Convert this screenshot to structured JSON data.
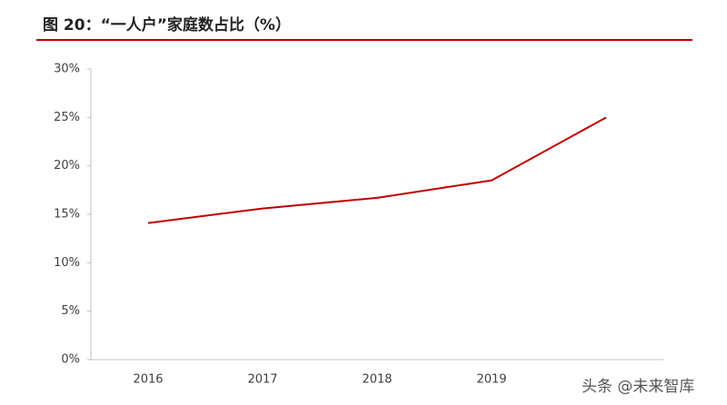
{
  "chart_data": {
    "type": "line",
    "title": "图 20：“一人户”家庭数占比（%）",
    "categories": [
      "2016",
      "2017",
      "2018",
      "2019",
      null
    ],
    "series": [
      {
        "name": "“一人户”家庭数占比",
        "color": "#c00000",
        "values": [
          14.1,
          15.6,
          16.7,
          18.5,
          25
        ]
      }
    ],
    "ylim": [
      0,
      30
    ],
    "yticks": [
      {
        "value": 0,
        "label": "0%"
      },
      {
        "value": 5,
        "label": "5%"
      },
      {
        "value": 10,
        "label": "10%"
      },
      {
        "value": 15,
        "label": "15%"
      },
      {
        "value": 20,
        "label": "20%"
      },
      {
        "value": 25,
        "label": "25%"
      },
      {
        "value": 30,
        "label": "30%"
      }
    ],
    "watermark": "头条 @未来智库"
  }
}
